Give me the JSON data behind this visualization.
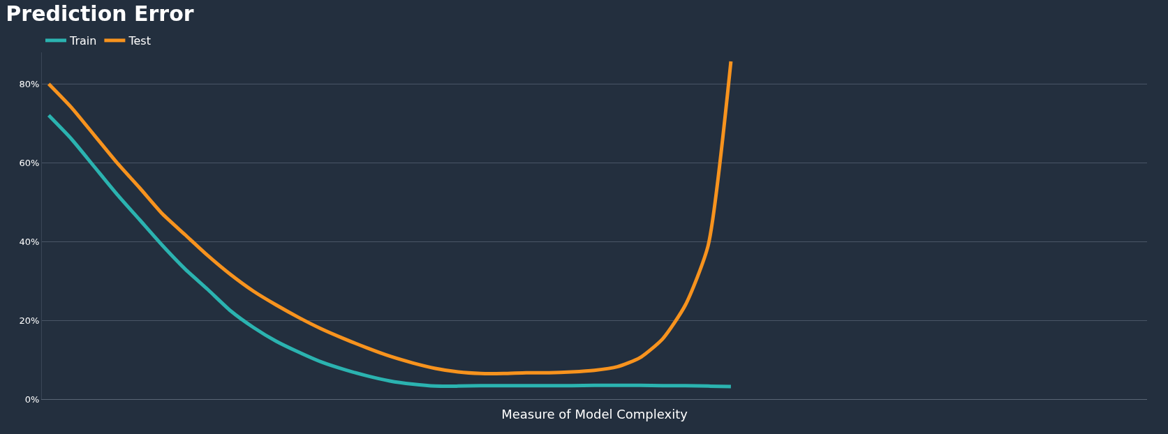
{
  "chart_data": {
    "type": "line",
    "title": "Prediction Error",
    "xlabel": "Measure of Model Complexity",
    "categories": [
      null,
      null,
      null,
      null,
      null,
      null,
      null,
      null,
      null,
      null,
      null,
      null,
      null,
      null,
      null,
      null,
      null,
      null,
      null,
      null,
      null,
      null,
      null,
      null,
      null,
      null,
      null,
      null,
      null,
      null,
      null,
      null,
      null,
      null,
      null,
      null,
      null,
      null,
      null,
      null,
      null,
      null,
      null,
      null,
      null,
      null,
      null,
      null,
      null
    ],
    "series": [
      {
        "name": "Train",
        "color": "#2bb3b0",
        "values": [
          72,
          66,
          59,
          52,
          45.5,
          39,
          33,
          27.8,
          22.4,
          18.2,
          14.7,
          11.9,
          9.4,
          7.5,
          5.9,
          4.6,
          3.8,
          3.3,
          3.3,
          3.4,
          3.4,
          3.4,
          3.4,
          3.4,
          3.5,
          3.5,
          3.5,
          3.4,
          3.4,
          3.3,
          3.2,
          null,
          null,
          null,
          null,
          null,
          null,
          null,
          null,
          null,
          null,
          null,
          null,
          null,
          null,
          null,
          null,
          null,
          null
        ]
      },
      {
        "name": "Test",
        "color": "#f7931e",
        "values": [
          80,
          74,
          67,
          60,
          53.6,
          47,
          41.7,
          36.4,
          31.6,
          27.4,
          23.9,
          20.7,
          17.8,
          15.3,
          13,
          10.9,
          9.2,
          7.8,
          6.9,
          6.5,
          6.5,
          6.7,
          6.7,
          6.9,
          7.3,
          8.2,
          10.5,
          15.3,
          23.9,
          39,
          85.7,
          null,
          null,
          null,
          null,
          null,
          null,
          null,
          null,
          null,
          null,
          null,
          null,
          null,
          null,
          null,
          null,
          null,
          null
        ]
      }
    ],
    "ylim": [
      0,
      88
    ],
    "yticks": [
      {
        "value": 0,
        "label": "0%"
      },
      {
        "value": 20,
        "label": "20%"
      },
      {
        "value": 40,
        "label": "40%"
      },
      {
        "value": 60,
        "label": "60%"
      },
      {
        "value": 80,
        "label": "80%"
      }
    ],
    "grid": "y",
    "legend": "top left",
    "marker": "none",
    "line_style": "solid",
    "tick_labels": "y"
  }
}
